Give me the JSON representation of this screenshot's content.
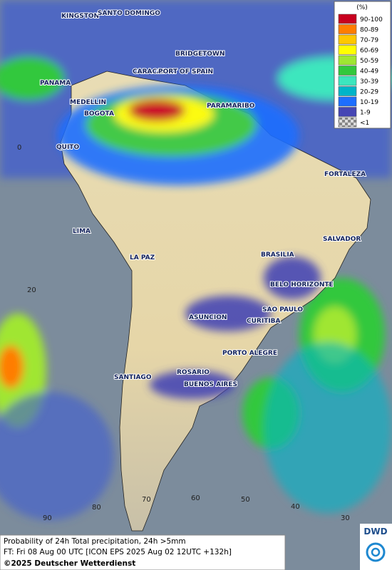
{
  "legend": {
    "title": "(%)",
    "items": [
      {
        "label": "90-100",
        "color": "#c8001e"
      },
      {
        "label": "80-89",
        "color": "#ff7d00"
      },
      {
        "label": "70-79",
        "color": "#ffc800"
      },
      {
        "label": "60-69",
        "color": "#ffff00"
      },
      {
        "label": "50-59",
        "color": "#a0e632"
      },
      {
        "label": "40-49",
        "color": "#32c83c"
      },
      {
        "label": "30-39",
        "color": "#3ce6be"
      },
      {
        "label": "20-29",
        "color": "#00b4c8"
      },
      {
        "label": "10-19",
        "color": "#1e6eff"
      },
      {
        "label": "1-9",
        "color": "#4646b4"
      },
      {
        "label": "<1",
        "color": "checker"
      }
    ]
  },
  "cities": [
    "KINGSTON",
    "SANTO DOMINGO",
    "BRIDGETOWN",
    "CARACAS",
    "PORT OF SPAIN",
    "PANAMA",
    "MEDELLIN",
    "BOGOTA",
    "PARAMARIBO",
    "QUITO",
    "FORTALEZA",
    "LIMA",
    "SALVADOR",
    "LA PAZ",
    "BRASILIA",
    "BELO HORIZONTE",
    "SAO PAULO",
    "ASUNCION",
    "CURITIBA",
    "PORTO ALEGRE",
    "SANTIAGO",
    "ROSARIO",
    "BUENOS AIRES"
  ],
  "grid_labels": {
    "latitude": [
      "0",
      "20"
    ],
    "longitude": [
      "90",
      "80",
      "70",
      "60",
      "50",
      "40",
      "30"
    ]
  },
  "footer": {
    "line1": "Probability of 24h Total precipitation, 24h >5mm",
    "line2": "FT: Fri 08 Aug 00 UTC [ICON EPS 2025 Aug 02 12UTC +132h]",
    "copyright": "©2025 Deutscher Wetterdienst"
  },
  "logo": {
    "text": "DWD"
  }
}
